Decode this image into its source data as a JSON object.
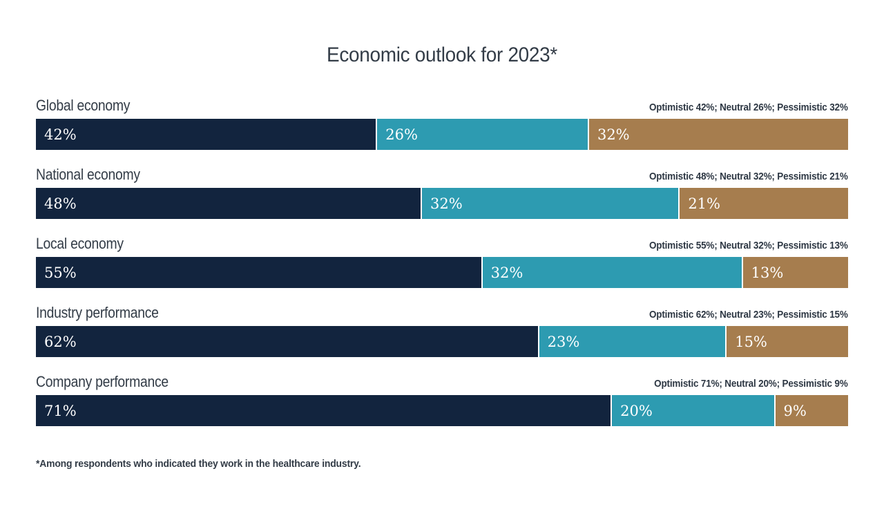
{
  "title": "Economic outlook for 2023*",
  "footnote": "*Among respondents who indicated they work in the healthcare industry.",
  "colors": {
    "optimistic": "#12243E",
    "neutral": "#2D9BB1",
    "pessimistic": "#A67D4E",
    "heading_text": "#333C47",
    "annotation_text": "#2E3844",
    "bar_value_text": "#FFFFFF",
    "background": "#FFFFFF"
  },
  "rows": [
    {
      "label": "Global economy",
      "annotation": "Optimistic 42%; Neutral 26%; Pessimistic 32%",
      "segments": [
        {
          "name": "optimistic",
          "value": 42,
          "label": "42%"
        },
        {
          "name": "neutral",
          "value": 26,
          "label": "26%"
        },
        {
          "name": "pessimistic",
          "value": 32,
          "label": "32%"
        }
      ]
    },
    {
      "label": "National economy",
      "annotation": "Optimistic 48%; Neutral 32%; Pessimistic 21%",
      "segments": [
        {
          "name": "optimistic",
          "value": 48,
          "label": "48%"
        },
        {
          "name": "neutral",
          "value": 32,
          "label": "32%"
        },
        {
          "name": "pessimistic",
          "value": 21,
          "label": "21%"
        }
      ]
    },
    {
      "label": "Local economy",
      "annotation": "Optimistic 55%; Neutral 32%; Pessimistic 13%",
      "segments": [
        {
          "name": "optimistic",
          "value": 55,
          "label": "55%"
        },
        {
          "name": "neutral",
          "value": 32,
          "label": "32%"
        },
        {
          "name": "pessimistic",
          "value": 13,
          "label": "13%"
        }
      ]
    },
    {
      "label": "Industry performance",
      "annotation": "Optimistic 62%; Neutral 23%; Pessimistic 15%",
      "segments": [
        {
          "name": "optimistic",
          "value": 62,
          "label": "62%"
        },
        {
          "name": "neutral",
          "value": 23,
          "label": "23%"
        },
        {
          "name": "pessimistic",
          "value": 15,
          "label": "15%"
        }
      ]
    },
    {
      "label": "Company performance",
      "annotation": "Optimistic 71%; Neutral 20%; Pessimistic 9%",
      "segments": [
        {
          "name": "optimistic",
          "value": 71,
          "label": "71%"
        },
        {
          "name": "neutral",
          "value": 20,
          "label": "20%"
        },
        {
          "name": "pessimistic",
          "value": 9,
          "label": "9%"
        }
      ]
    }
  ],
  "chart_data": {
    "type": "bar",
    "subtype": "horizontal-stacked",
    "title": "Economic outlook for 2023*",
    "categories": [
      "Global economy",
      "National economy",
      "Local economy",
      "Industry performance",
      "Company performance"
    ],
    "series": [
      {
        "name": "Optimistic",
        "color": "#12243E",
        "values": [
          42,
          48,
          55,
          62,
          71
        ]
      },
      {
        "name": "Neutral",
        "color": "#2D9BB1",
        "values": [
          26,
          32,
          32,
          23,
          20
        ]
      },
      {
        "name": "Pessimistic",
        "color": "#A67D4E",
        "values": [
          32,
          21,
          13,
          15,
          9
        ]
      }
    ],
    "value_format": "percent",
    "xlim": [
      0,
      100
    ],
    "grid": false,
    "legend_position": "per-row-annotation",
    "bar_value_labels_inside": true,
    "footnote": "*Among respondents who indicated they work in the healthcare industry."
  }
}
